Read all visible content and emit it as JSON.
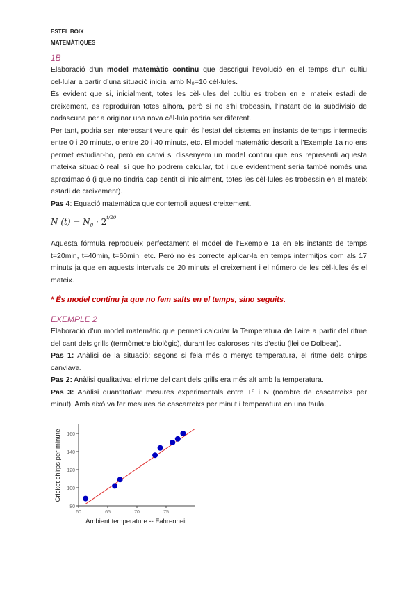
{
  "header": {
    "author": "ESTEL BOIX",
    "subject": "MATEMÀTIQUES"
  },
  "section_1b": {
    "title": "1B",
    "p1_a": "Elaboració d’un ",
    "p1_b": "model matemàtic continu",
    "p1_c": " que descrigui l’evolució en el temps d’un cultiu cel·lular a partir d’una situació inicial amb N₀=10 cèl·lules.",
    "p2": "És evident que si, inicialment, totes les cèl·lules del cultiu es troben en el mateix estadi de creixement, es reproduiran totes alhora, però si no s’hi trobessin, l’instant de la subdivisió de cadascuna per a originar una nova cèl·lula podria ser diferent.",
    "p3": "Per tant, podria ser interessant veure quin és l’estat del sistema en instants de temps intermedis entre 0 i 20 minuts, o entre 20 i 40 minuts, etc. El model matemàtic descrit a l’Exemple 1a no ens permet estudiar-ho, però en canvi si dissenyem un model continu que ens representi aquesta mateixa situació real, sí que ho podrem calcular, tot i que evidentment seria també només una aproximació (i que no tindria cap sentit si inicialment, totes les cèl·lules es trobessin en el mateix estadi de creixement).",
    "pas4_label": "Pas 4",
    "pas4_text": ": Equació matemàtica que contempli aquest creixement.",
    "formula_lhs": "N (t)  =  N",
    "formula_sub": "0",
    "formula_base": " · 2",
    "formula_exp": "t/20",
    "p4": "Aquesta fórmula reprodueix perfectament el model de l’Exemple 1a en els instants de temps t=20min, t=40min, t=60min, etc. Però no és correcte aplicar-la en temps intermitjos com als 17 minuts ja que en aquests intervals de 20 minuts el creixement i el número de les cèl·lules és el mateix.",
    "note": "* És model continu ja que no fem salts en el temps, sino seguits."
  },
  "example_2": {
    "title": "EXEMPLE 2",
    "p1": "Elaboració d'un model matemàtic que permeti calcular la Temperatura de l'aire a partir del ritme del cant dels grills (termòmetre biològic), durant les caloroses nits d'estiu (llei de Dolbear).",
    "pas1_label": "Pas 1:",
    "pas1_text": " Anàlisi de la situació: segons si feia més o menys temperatura, el ritme dels chirps canviava.",
    "pas2_label": "Pas 2:",
    "pas2_text": " Anàlisi qualitativa: el ritme del cant dels grills era més alt amb la temperatura.",
    "pas3_label": "Pas 3:",
    "pas3_text": " Anàlisi quantitativa: mesures experimentals entre Tº i N (nombre de cascarreixs per minut). Amb això va fer mesures de cascarreixs per minut i temperatura en una taula."
  },
  "chart_data": {
    "type": "scatter",
    "xlabel": "Ambient temperature -- Fahrenheit",
    "ylabel": "Cricket chirps per minute",
    "xlim": [
      60,
      80
    ],
    "ylim": [
      80,
      170
    ],
    "xticks": [
      "60",
      "65",
      "70",
      "75"
    ],
    "yticks": [
      "80",
      "100",
      "120",
      "140",
      "160"
    ],
    "points": [
      [
        61.2,
        88
      ],
      [
        66.2,
        102
      ],
      [
        67.1,
        109
      ],
      [
        73.1,
        136
      ],
      [
        74.0,
        144
      ],
      [
        76.1,
        150
      ],
      [
        77.0,
        154
      ],
      [
        77.9,
        160
      ]
    ],
    "fit_line": [
      [
        61.2,
        82
      ],
      [
        79.9,
        165
      ]
    ],
    "point_color": "#0000c0",
    "line_color": "#e03030",
    "grid": false
  }
}
